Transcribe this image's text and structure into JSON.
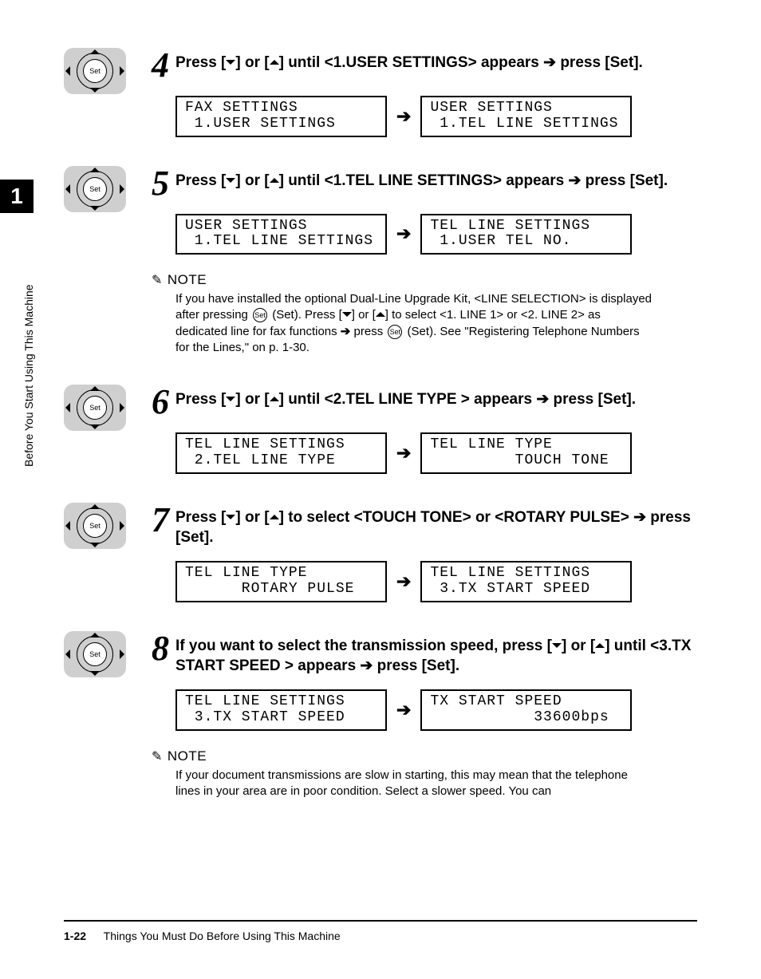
{
  "side": {
    "chapter_number": "1",
    "vertical_label": "Before You Start Using This Machine"
  },
  "dpad": {
    "center_label": "Set"
  },
  "steps": [
    {
      "num": "4",
      "text_pre": "Press [",
      "text_mid1": "] or [",
      "text_mid2": "] until <1.USER SETTINGS> appears ",
      "text_post": " press [Set].",
      "lcd_left": "FAX SETTINGS\n 1.USER SETTINGS",
      "lcd_right": "USER SETTINGS\n 1.TEL LINE SETTINGS"
    },
    {
      "num": "5",
      "text_pre": "Press [",
      "text_mid1": "] or [",
      "text_mid2": "] until <1.TEL LINE SETTINGS> appears ",
      "text_post": " press [Set].",
      "lcd_left": "USER SETTINGS\n 1.TEL LINE SETTINGS",
      "lcd_right": "TEL LINE SETTINGS\n 1.USER TEL NO.",
      "note_label": "NOTE",
      "note_a": "If you have installed the optional Dual-Line Upgrade Kit, <LINE SELECTION> is displayed after pressing ",
      "note_b": " (Set). Press [",
      "note_c": "] or [",
      "note_d": "] to select <1. LINE 1> or <2. LINE 2> as dedicated line for fax functions ",
      "note_e": " press ",
      "note_f": " (Set). See \"Registering Telephone Numbers for the Lines,\" on p. 1-30."
    },
    {
      "num": "6",
      "text_pre": "Press [",
      "text_mid1": "] or [",
      "text_mid2": "] until <2.TEL LINE TYPE > appears ",
      "text_post": " press [Set].",
      "lcd_left": "TEL LINE SETTINGS\n 2.TEL LINE TYPE",
      "lcd_right": "TEL LINE TYPE\n         TOUCH TONE"
    },
    {
      "num": "7",
      "text_pre": "Press [",
      "text_mid1": "] or [",
      "text_mid2": "] to select <TOUCH TONE> or <ROTARY PULSE> ",
      "text_post": " press [Set].",
      "lcd_left": "TEL LINE TYPE\n      ROTARY PULSE",
      "lcd_right": "TEL LINE SETTINGS\n 3.TX START SPEED"
    },
    {
      "num": "8",
      "text_pre": "If you want to select the transmission speed, press [",
      "text_mid1": "] or [",
      "text_mid2": "] until <3.TX START SPEED > appears ",
      "text_post": " press [Set].",
      "lcd_left": "TEL LINE SETTINGS\n 3.TX START SPEED",
      "lcd_right": "TX START SPEED\n           33600bps",
      "note_label": "NOTE",
      "note_a": "If your document transmissions are slow in starting, this may mean that the telephone lines in your area are in poor condition. Select a slower speed. You can"
    }
  ],
  "symbols": {
    "arrow_right": "➔",
    "set_small": "Set"
  },
  "footer": {
    "page": "1-22",
    "title": "Things You Must Do Before Using This Machine"
  }
}
